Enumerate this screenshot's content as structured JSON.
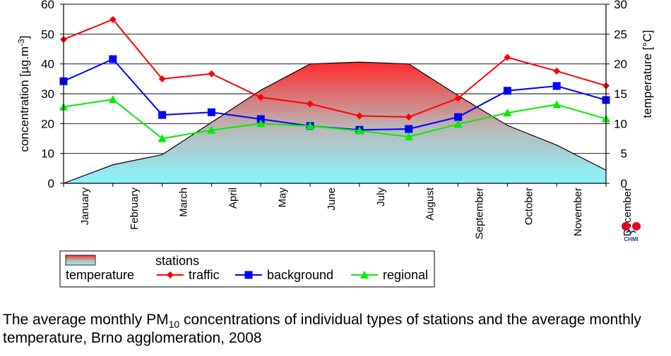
{
  "chart_data": {
    "type": "line",
    "categories": [
      "January",
      "February",
      "March",
      "April",
      "May",
      "June",
      "July",
      "August",
      "September",
      "October",
      "November",
      "December"
    ],
    "series": [
      {
        "name": "traffic",
        "axis": "left",
        "color": "#ff0000",
        "marker": "diamond",
        "values": [
          48.2,
          54.9,
          35.0,
          36.7,
          28.8,
          26.6,
          22.6,
          22.2,
          28.5,
          42.2,
          37.6,
          32.7
        ]
      },
      {
        "name": "background",
        "axis": "left",
        "color": "#0000ff",
        "marker": "square",
        "values": [
          34.2,
          41.6,
          22.9,
          23.8,
          21.5,
          19.2,
          17.9,
          18.2,
          22.2,
          31.0,
          32.6,
          27.9
        ]
      },
      {
        "name": "regional",
        "axis": "left",
        "color": "#00ee00",
        "marker": "triangle",
        "values": [
          25.6,
          28.1,
          15.0,
          17.8,
          20.0,
          19.2,
          17.6,
          15.6,
          19.8,
          23.6,
          26.4,
          21.6
        ]
      }
    ],
    "temperature": {
      "name": "temperature",
      "axis": "right",
      "type": "area",
      "x": [
        "January",
        "February",
        "March",
        "April",
        "May",
        "June",
        "July",
        "August",
        "September",
        "October",
        "November",
        "December"
      ],
      "values": [
        0.0,
        3.1,
        4.8,
        10.2,
        15.6,
        20.0,
        20.3,
        20.0,
        14.7,
        9.7,
        6.4,
        2.2
      ]
    },
    "left_axis": {
      "label_main": "concentration [µg.m",
      "label_sup": "-3",
      "label_end": "]",
      "ylim": [
        0,
        60
      ],
      "ticks": [
        "0",
        "10",
        "20",
        "30",
        "40",
        "50",
        "60"
      ]
    },
    "right_axis": {
      "label": "temperature [°C]",
      "ylim": [
        0,
        30
      ],
      "ticks": [
        "0",
        "5",
        "10",
        "15",
        "20",
        "25",
        "30"
      ]
    },
    "grid": true,
    "legend": {
      "temperature_label": "temperature",
      "stations_heading": "stations",
      "entries": [
        "traffic",
        "background",
        "regional"
      ],
      "placement": "bottom-left"
    }
  },
  "logo": {
    "text": "CHMI"
  },
  "caption": {
    "part1": "The average monthly PM",
    "sub": "10",
    "part2": " concentrations of individual types of stations and the average monthly temperature, Brno agglomeration, 2008"
  }
}
